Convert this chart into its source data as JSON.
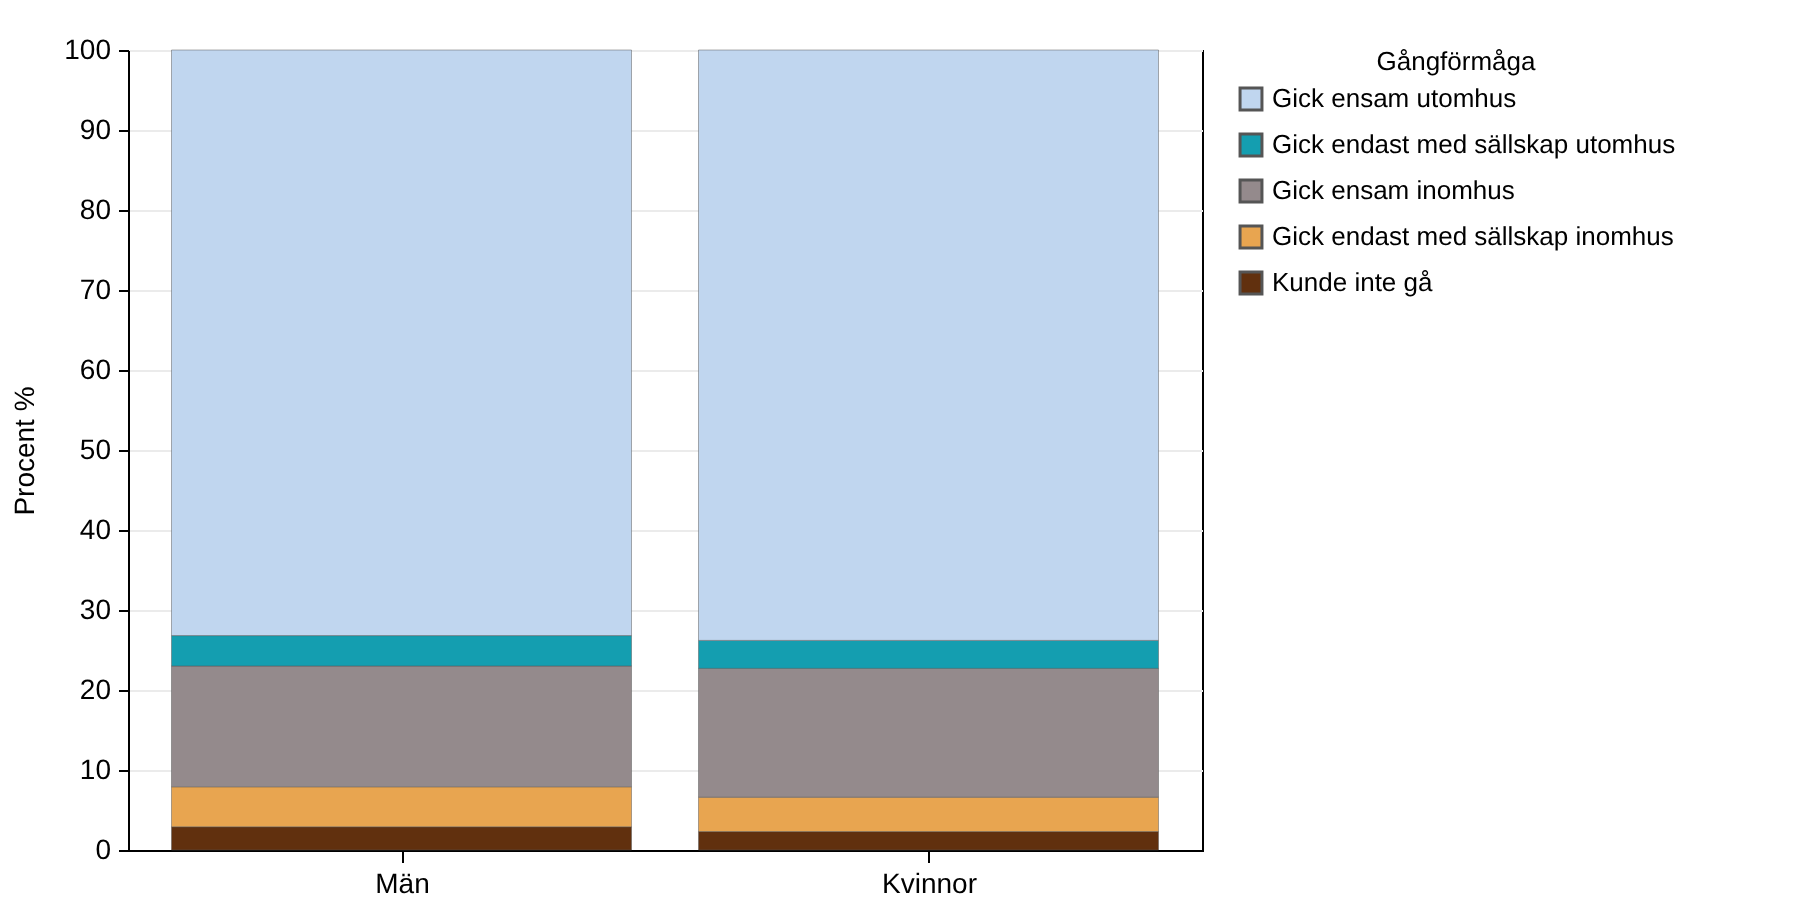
{
  "chart_data": {
    "type": "bar",
    "stacked": true,
    "categories": [
      "Män",
      "Kvinnor"
    ],
    "ylabel": "Procent %",
    "legend_title": "Gångförmåga",
    "legend": "right",
    "grid": "y",
    "ylim": [
      0,
      100
    ],
    "yticks": [
      0,
      10,
      20,
      30,
      40,
      50,
      60,
      70,
      80,
      90,
      100
    ],
    "series": [
      {
        "name": "Kunde inte gå",
        "color": "#61300e",
        "values": [
          2.9,
          2.3
        ]
      },
      {
        "name": "Gick endast med sällskap inomhus",
        "color": "#e8a550",
        "values": [
          5.0,
          4.3
        ]
      },
      {
        "name": "Gick ensam inomhus",
        "color": "#948a8c",
        "values": [
          15.1,
          16.1
        ]
      },
      {
        "name": "Gick endast med sällskap utomhus",
        "color": "#149eb0",
        "values": [
          3.8,
          3.5
        ]
      },
      {
        "name": "Gick ensam utomhus",
        "color": "#c0d6ef",
        "values": [
          73.2,
          73.8
        ]
      }
    ]
  }
}
